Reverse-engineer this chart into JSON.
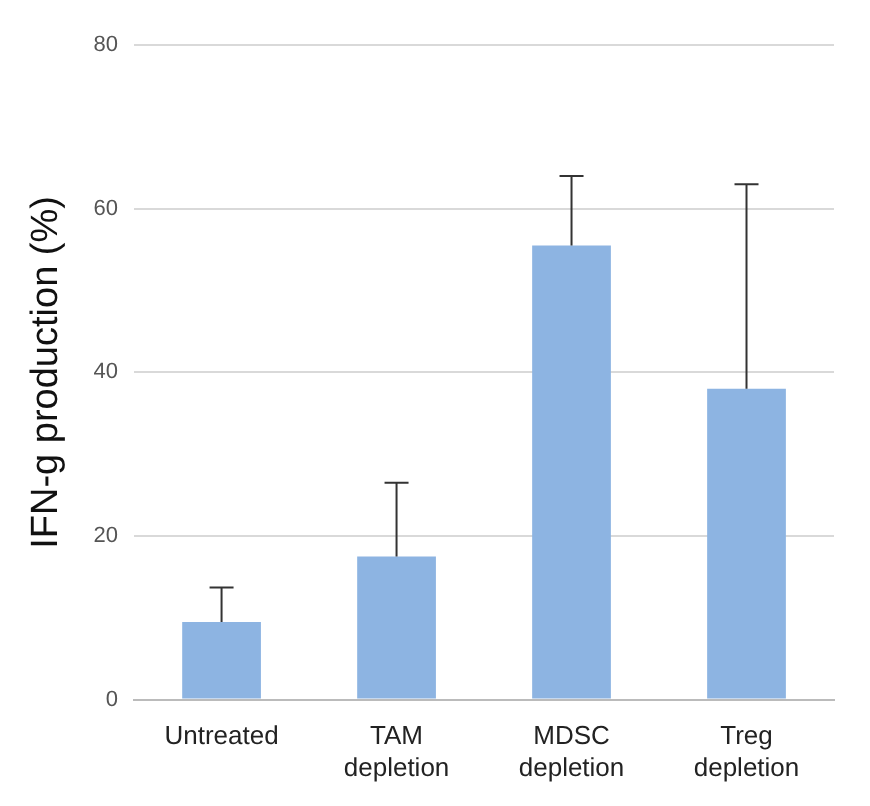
{
  "chart_data": {
    "type": "bar",
    "ylabel": "IFN-g production (%)",
    "categories": [
      "Untreated",
      "TAM\ndepletion",
      "MDSC\ndepletion",
      "Treg\ndepletion"
    ],
    "values": [
      9.5,
      17.5,
      55.5,
      38
    ],
    "errors": [
      [
        9.5,
        13.7
      ],
      [
        17.5,
        26.5
      ],
      [
        55.5,
        64
      ],
      [
        38,
        63
      ]
    ],
    "color": "#8db4e2",
    "ylim": [
      0,
      80
    ],
    "yticks": [
      0,
      20,
      40,
      60,
      80
    ],
    "grid": "y",
    "legend": false
  }
}
